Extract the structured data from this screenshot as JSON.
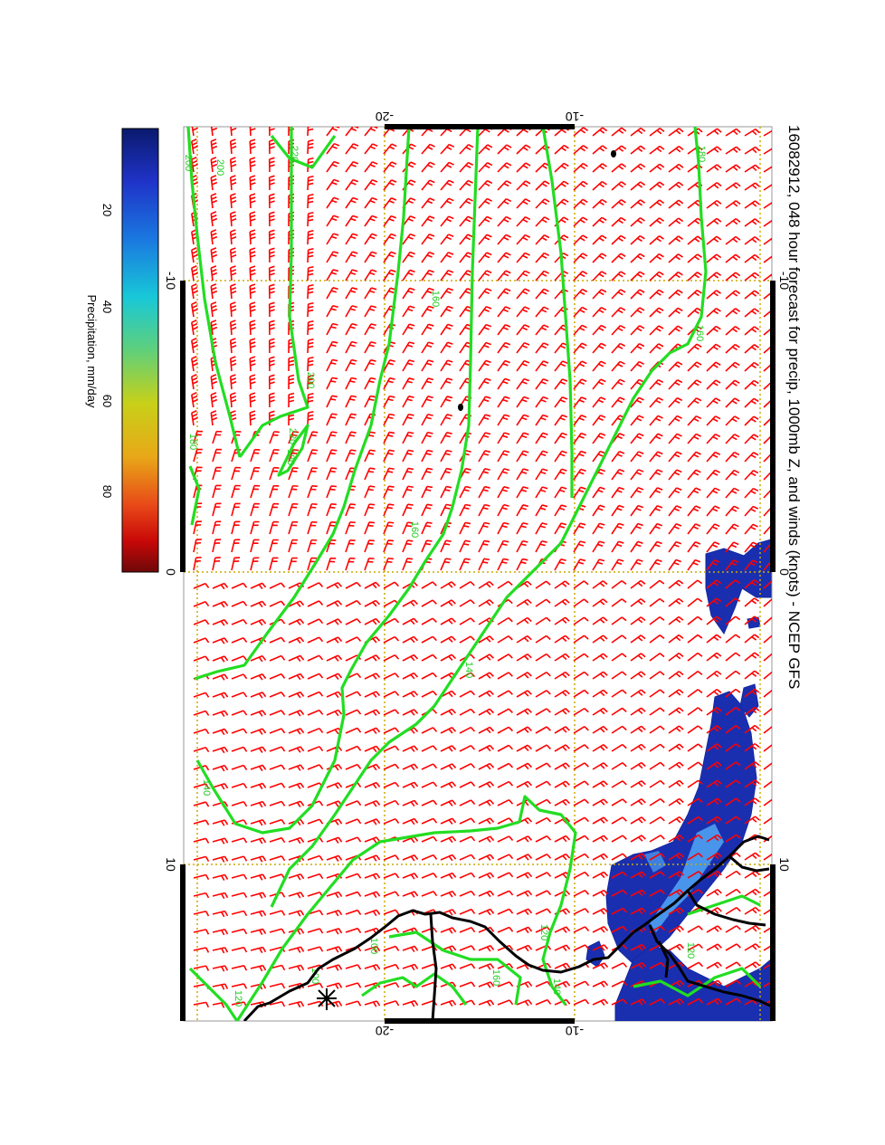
{
  "title": "16082912, 048 hour forecast for precip, 1000mb Z, and winds (knots) - NCEP GFS",
  "map": {
    "lon_ticks": [
      "-10",
      "0",
      "10"
    ],
    "lat_ticks_top": [
      "-20",
      "-10"
    ],
    "lat_ticks_bottom": [
      "-20",
      "-10"
    ],
    "contour_labels": [
      "220",
      "200",
      "200",
      "180",
      "220",
      "200",
      "180",
      "160",
      "140",
      "160",
      "140",
      "120",
      "160",
      "180",
      "160",
      "140",
      "100",
      "120",
      "100",
      "120"
    ],
    "colors": {
      "contour": "#22dd22",
      "barb": "#ff0000",
      "coast": "#000000",
      "grid": "#ccaa00",
      "precip_low": "#1a2fb0",
      "precip_high": "#58b8ff"
    }
  },
  "colorbar": {
    "label": "Precipitation, mm/day",
    "ticks": [
      "20",
      "40",
      "60",
      "80"
    ],
    "stops": [
      "#0a1a6e",
      "#1f33c8",
      "#1a78e0",
      "#18c8d8",
      "#5fd07a",
      "#c8d018",
      "#e8a818",
      "#e84818",
      "#c80808",
      "#6e0808"
    ]
  }
}
